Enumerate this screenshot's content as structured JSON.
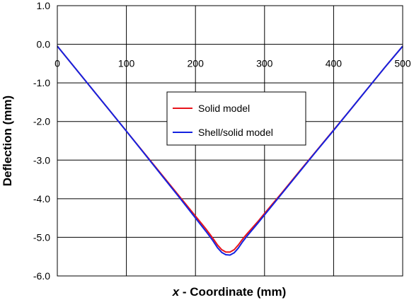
{
  "chart_data": {
    "type": "line",
    "xlabel_var": "x",
    "xlabel_rest": " - Coordinate (mm)",
    "ylabel": "Deflection (mm)",
    "xlim": [
      0,
      500
    ],
    "ylim": [
      -6.0,
      1.0
    ],
    "xticks": [
      0,
      100,
      200,
      300,
      400,
      500
    ],
    "xtick_labels": [
      "0",
      "100",
      "200",
      "300",
      "400",
      "500"
    ],
    "yticks": [
      1.0,
      0.0,
      -1.0,
      -2.0,
      -3.0,
      -4.0,
      -5.0,
      -6.0
    ],
    "ytick_labels": [
      "1.0",
      "0.0",
      "-1.0",
      "-2.0",
      "-3.0",
      "-4.0",
      "-5.0",
      "-6.0"
    ],
    "grid": true,
    "legend_position": "center",
    "series": [
      {
        "name": "Solid model",
        "color": "#e8141b",
        "x": [
          0,
          25,
          50,
          75,
          100,
          125,
          150,
          175,
          200,
          215,
          225,
          232,
          238,
          244,
          250,
          256,
          262,
          268,
          275,
          290,
          300,
          325,
          350,
          375,
          400,
          425,
          450,
          475,
          500
        ],
        "y": [
          -0.05,
          -0.6,
          -1.15,
          -1.7,
          -2.25,
          -2.8,
          -3.35,
          -3.9,
          -4.45,
          -4.78,
          -5.02,
          -5.2,
          -5.32,
          -5.38,
          -5.38,
          -5.32,
          -5.2,
          -5.05,
          -4.9,
          -4.6,
          -4.38,
          -3.85,
          -3.3,
          -2.76,
          -2.22,
          -1.68,
          -1.13,
          -0.58,
          -0.05
        ]
      },
      {
        "name": "Shell/solid model",
        "color": "#1422e0",
        "x": [
          0,
          25,
          50,
          75,
          100,
          125,
          150,
          175,
          200,
          215,
          225,
          232,
          238,
          244,
          250,
          256,
          262,
          268,
          275,
          290,
          300,
          325,
          350,
          375,
          400,
          425,
          450,
          475,
          500
        ],
        "y": [
          -0.05,
          -0.6,
          -1.15,
          -1.7,
          -2.25,
          -2.81,
          -3.37,
          -3.93,
          -4.5,
          -4.84,
          -5.08,
          -5.27,
          -5.39,
          -5.45,
          -5.46,
          -5.4,
          -5.28,
          -5.12,
          -4.96,
          -4.64,
          -4.42,
          -3.87,
          -3.32,
          -2.77,
          -2.23,
          -1.68,
          -1.13,
          -0.58,
          -0.05
        ]
      }
    ]
  }
}
